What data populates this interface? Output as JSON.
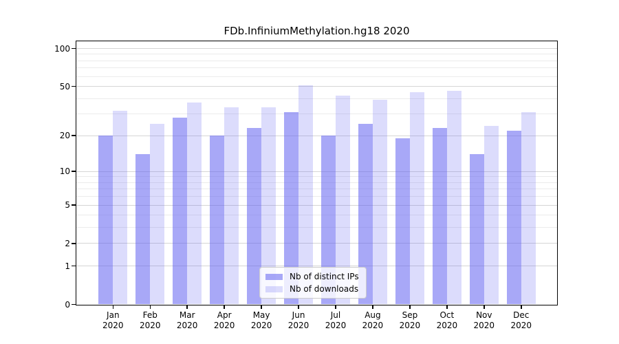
{
  "title": "FDb.InfiniumMethylation.hg18 2020",
  "chart_data": {
    "type": "bar",
    "scale": "log1p",
    "title": "FDb.InfiniumMethylation.hg18 2020",
    "categories": [
      "Jan 2020",
      "Feb 2020",
      "Mar 2020",
      "Apr 2020",
      "May 2020",
      "Jun 2020",
      "Jul 2020",
      "Aug 2020",
      "Sep 2020",
      "Oct 2020",
      "Nov 2020",
      "Dec 2020"
    ],
    "month_labels": [
      "Jan",
      "Feb",
      "Mar",
      "Apr",
      "May",
      "Jun",
      "Jul",
      "Aug",
      "Sep",
      "Oct",
      "Nov",
      "Dec"
    ],
    "year_label": "2020",
    "series": [
      {
        "name": "Nb of distinct IPs",
        "color": "rgba(97,97,240,0.55)",
        "values": [
          20,
          14,
          28,
          20,
          23,
          31,
          20,
          25,
          19,
          23,
          14,
          22
        ]
      },
      {
        "name": "Nb of downloads",
        "color": "rgba(97,97,240,0.22)",
        "values": [
          32,
          25,
          37,
          34,
          34,
          51,
          42,
          39,
          45,
          46,
          24,
          31
        ]
      }
    ],
    "xlabel": "",
    "ylabel": "",
    "ylim": [
      0,
      116
    ],
    "y_ticks": [
      0,
      1,
      2,
      5,
      10,
      20,
      50,
      100
    ],
    "y_minor_ticks": [
      3,
      4,
      6,
      7,
      8,
      9,
      30,
      40,
      60,
      70,
      80,
      90
    ],
    "grid": "on",
    "legend_position": "bottom-center-inside",
    "colors": {
      "bar_base": "#6161f0",
      "grid_major": "#d5d5d5",
      "grid_minor": "#ebebeb",
      "frame": "#000000",
      "text": "#000000",
      "legend_border": "#cccccc"
    }
  },
  "legend": {
    "items": [
      "Nb of distinct IPs",
      "Nb of downloads"
    ]
  }
}
